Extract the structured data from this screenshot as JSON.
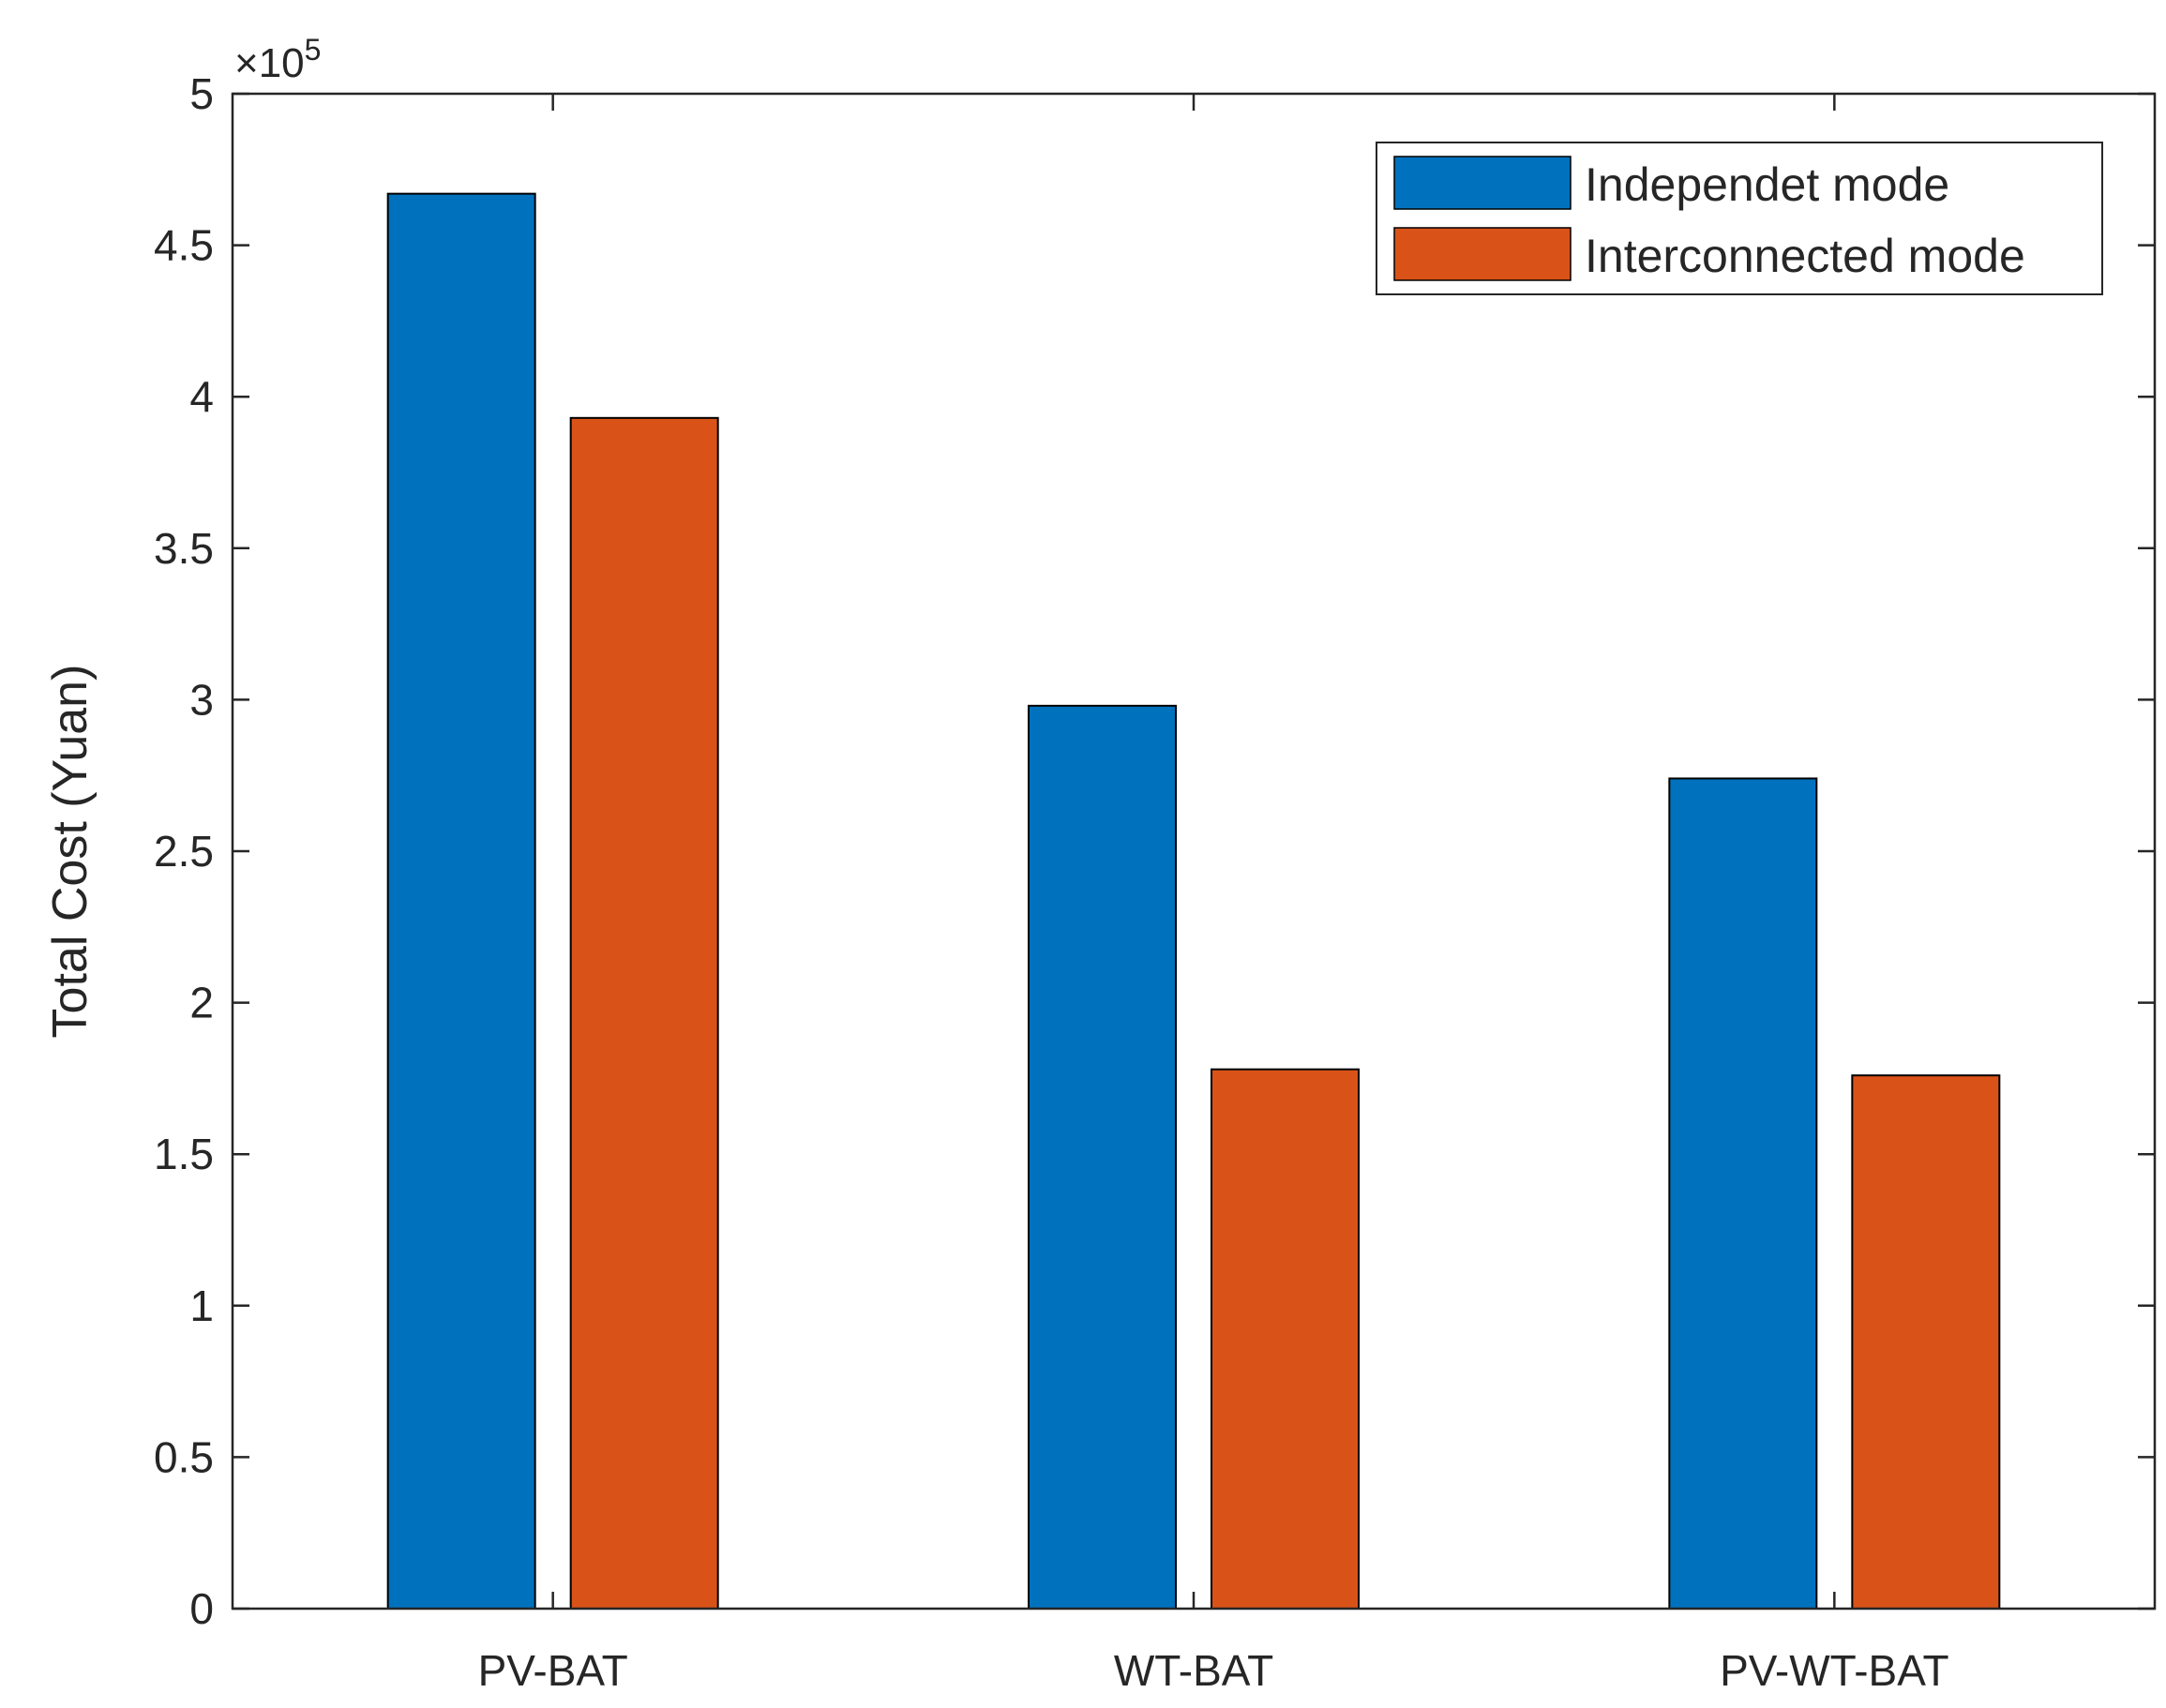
{
  "chart_data": {
    "type": "bar",
    "title": "",
    "xlabel": "",
    "ylabel": "Total Cost (Yuan)",
    "y_multiplier": {
      "base": "×10",
      "exponent": "5"
    },
    "categories": [
      "PV-BAT",
      "WT-BAT",
      "PV-WT-BAT"
    ],
    "series": [
      {
        "name": "Independet mode",
        "color": "#0072BD",
        "values": [
          4.67,
          2.98,
          2.74
        ]
      },
      {
        "name": "Interconnected mode",
        "color": "#D95319",
        "values": [
          3.93,
          1.78,
          1.76
        ]
      }
    ],
    "ylim": [
      0,
      5
    ],
    "yticks": [
      0,
      0.5,
      1,
      1.5,
      2,
      2.5,
      3,
      3.5,
      4,
      4.5,
      5
    ],
    "ytick_labels": [
      "0",
      "0.5",
      "1",
      "1.5",
      "2",
      "2.5",
      "3",
      "3.5",
      "4",
      "4.5",
      "5"
    ],
    "grid": false,
    "legend_position": "top-right"
  }
}
